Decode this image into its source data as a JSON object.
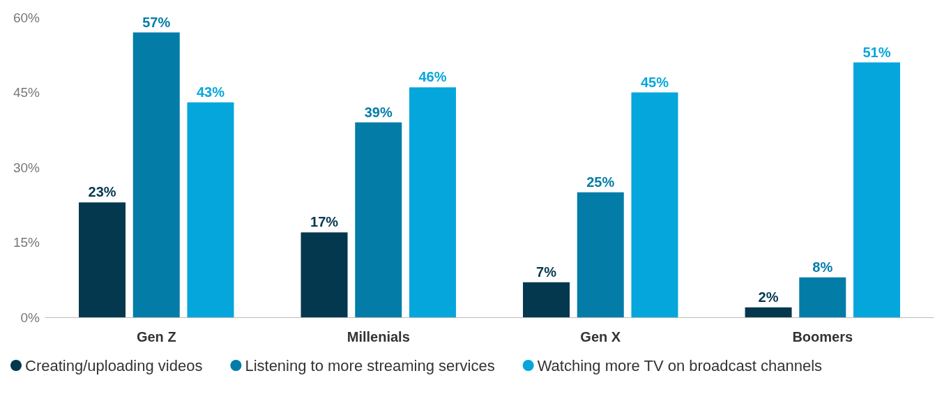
{
  "chart_data": {
    "type": "bar",
    "categories": [
      "Gen Z",
      "Millenials",
      "Gen X",
      "Boomers"
    ],
    "series": [
      {
        "name": "Creating/uploading videos",
        "color": "#04384f",
        "values": [
          23,
          17,
          7,
          2
        ],
        "value_labels": [
          "23%",
          "17%",
          "7%",
          "2%"
        ]
      },
      {
        "name": "Listening to more streaming services",
        "color": "#037ca8",
        "values": [
          57,
          39,
          25,
          8
        ],
        "value_labels": [
          "57%",
          "39%",
          "25%",
          "8%"
        ]
      },
      {
        "name": "Watching more TV on broadcast channels",
        "color": "#05a6dc",
        "values": [
          43,
          46,
          45,
          51
        ],
        "value_labels": [
          "43%",
          "46%",
          "45%",
          "51%"
        ]
      }
    ],
    "ylim": [
      0,
      60
    ],
    "yticks": [
      {
        "value": 0,
        "label": "0%"
      },
      {
        "value": 15,
        "label": "15%"
      },
      {
        "value": 30,
        "label": "30%"
      },
      {
        "value": 45,
        "label": "45%"
      },
      {
        "value": 60,
        "label": "60%"
      }
    ],
    "grid": false,
    "legend": "bottom",
    "marker": "circle"
  }
}
